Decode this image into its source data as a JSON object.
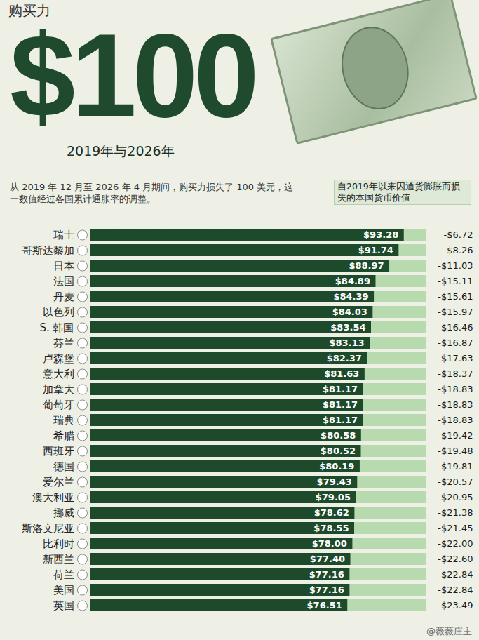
{
  "chart_data": {
    "type": "bar",
    "orientation": "horizontal",
    "title": "购买力",
    "heading": "$100",
    "subtitle": "2019年与2026年",
    "description": "从 2019 年 12 月至 2026 年 4 月期间，购买力损失了 100 美元，这一数值经过各国累计通胀率的调整。",
    "column_title": "100美元在2019年时的价值在2026年时的价值",
    "loss_title": "自2019年以来因通货膨胀而损失的本国货币价值",
    "watermark": "@薇薇庄主",
    "categories": [
      "瑞士",
      "哥斯达黎加",
      "日本",
      "法国",
      "丹麦",
      "以色列",
      "S. 韩国",
      "芬兰",
      "卢森堡",
      "意大利",
      "加拿大",
      "葡萄牙",
      "瑞典",
      "希腊",
      "西班牙",
      "德国",
      "爱尔兰",
      "澳大利亚",
      "挪威",
      "斯洛文尼亚",
      "比利时",
      "新西兰",
      "荷兰",
      "美国",
      "英国"
    ],
    "values": [
      93.28,
      91.74,
      88.97,
      84.89,
      84.39,
      84.03,
      83.54,
      83.13,
      82.37,
      81.63,
      81.17,
      81.17,
      81.17,
      80.58,
      80.52,
      80.19,
      79.43,
      79.05,
      78.62,
      78.55,
      78.0,
      77.4,
      77.16,
      77.16,
      76.51
    ],
    "value_labels": [
      "$93.28",
      "$91.74",
      "$88.97",
      "$84.89",
      "$84.39",
      "$84.03",
      "$83.54",
      "$83.13",
      "$82.37",
      "$81.63",
      "$81.17",
      "$81.17",
      "$81.17",
      "$80.58",
      "$80.52",
      "$80.19",
      "$79.43",
      "$79.05",
      "$78.62",
      "$78.55",
      "$78.00",
      "$77.40",
      "$77.16",
      "$77.16",
      "$76.51"
    ],
    "losses": [
      -6.72,
      -8.26,
      -11.03,
      -15.11,
      -15.61,
      -15.97,
      -16.46,
      -16.87,
      -17.63,
      -18.37,
      -18.83,
      -18.83,
      -18.83,
      -19.42,
      -19.48,
      -19.81,
      -20.57,
      -20.95,
      -21.38,
      -21.45,
      -22.0,
      -22.6,
      -22.84,
      -22.84,
      -23.49
    ],
    "loss_labels": [
      "-$6.72",
      "-$8.26",
      "-$11.03",
      "-$15.11",
      "-$15.61",
      "-$15.97",
      "-$16.46",
      "-$16.87",
      "-$17.63",
      "-$18.37",
      "-$18.83",
      "-$18.83",
      "-$18.83",
      "-$19.42",
      "-$19.48",
      "-$19.81",
      "-$20.57",
      "-$20.95",
      "-$21.38",
      "-$21.45",
      "-$22.00",
      "-$22.60",
      "-$22.84",
      "-$22.84",
      "-$23.49"
    ],
    "color": "#1e4a2c",
    "xlim": [
      0,
      100
    ],
    "xticks": [],
    "tick_labels": "y",
    "data_labels": true
  }
}
